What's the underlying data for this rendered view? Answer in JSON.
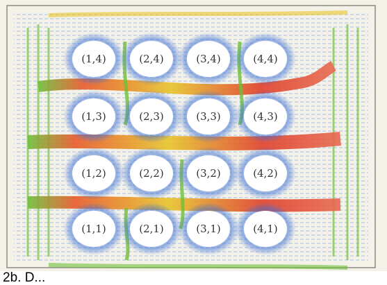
{
  "figure": {
    "grid": [
      [
        "(1,4)",
        "(2,4)",
        "(3,4)",
        "(4,4)"
      ],
      [
        "(1,3)",
        "(2,3)",
        "(3,3)",
        "(4,3)"
      ],
      [
        "(1,2)",
        "(2,2)",
        "(3,2)",
        "(4,2)"
      ],
      [
        "(1,1)",
        "(2,1)",
        "(3,1)",
        "(4,1)"
      ]
    ],
    "colors": {
      "low": "#3a6fd8",
      "mid": "#5fbf3f",
      "high_mid": "#e8d32a",
      "high": "#e0402a",
      "background": "#f4f2e8"
    }
  },
  "caption": "2b. D..."
}
